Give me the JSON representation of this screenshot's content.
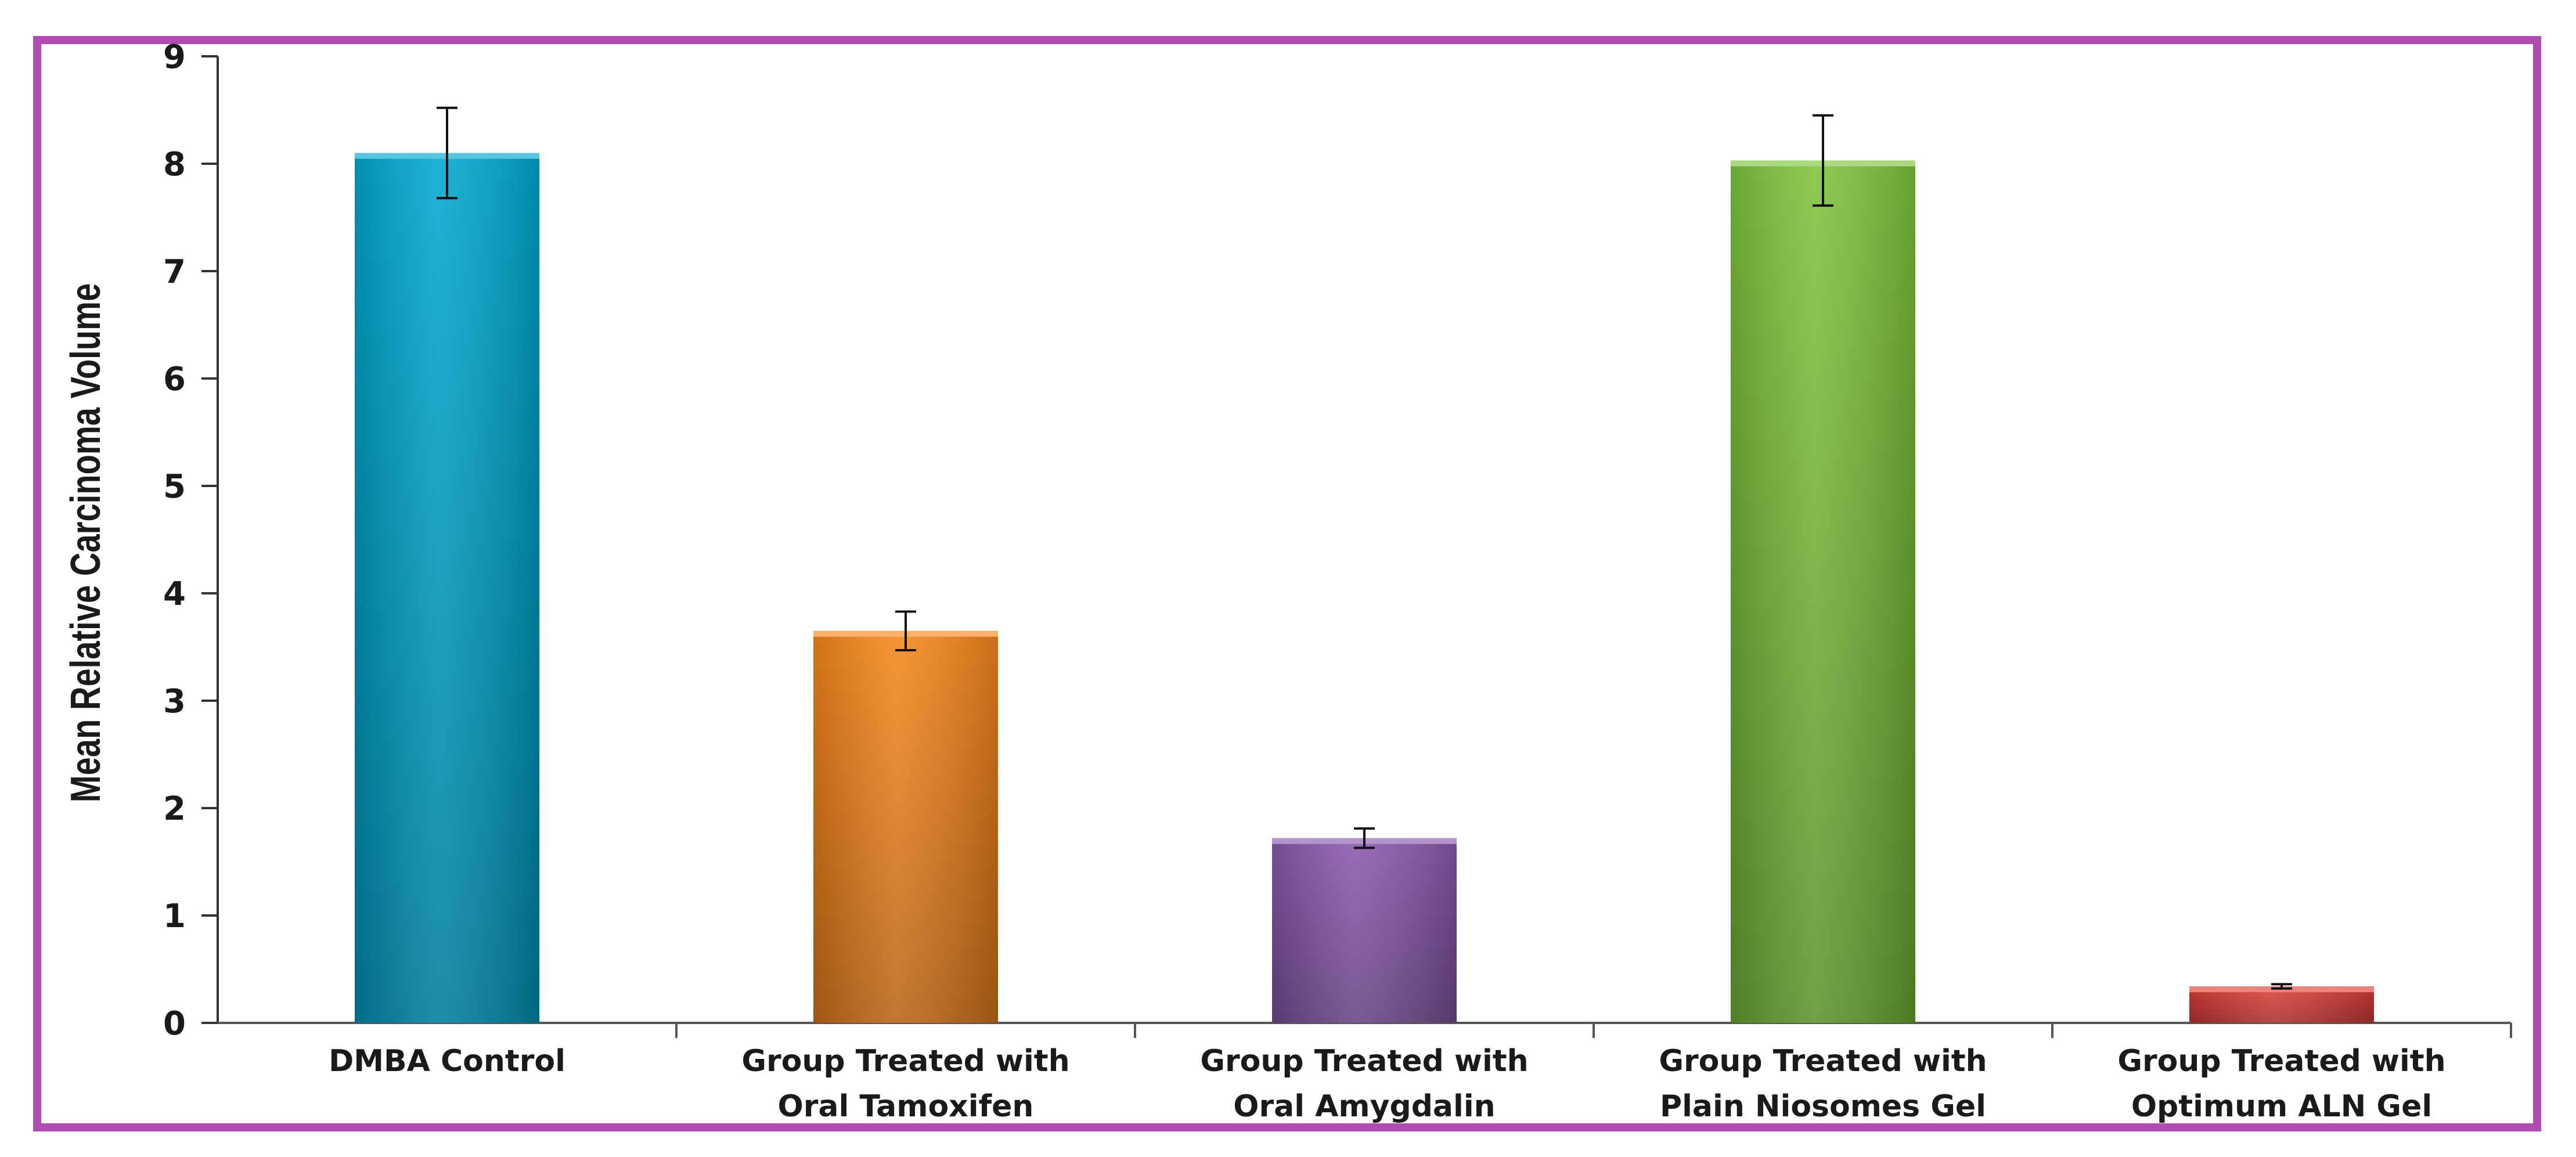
{
  "chart_data": {
    "type": "bar",
    "title": "",
    "xlabel": "",
    "ylabel": "Mean Relative Carcinoma Volume",
    "ylim": [
      0,
      9
    ],
    "yticks": [
      "0",
      "1",
      "2",
      "3",
      "4",
      "5",
      "6",
      "7",
      "8",
      "9"
    ],
    "grid": false,
    "legend": "none",
    "categories": [
      [
        "DMBA Control"
      ],
      [
        "Group Treated with",
        "Oral Tamoxifen"
      ],
      [
        "Group Treated with",
        "Oral Amygdalin"
      ],
      [
        "Group Treated with",
        "Plain Niosomes Gel"
      ],
      [
        "Group Treated with",
        "Optimum ALN Gel"
      ]
    ],
    "values": [
      8.1,
      3.65,
      1.72,
      8.03,
      0.34
    ],
    "errors": [
      0.42,
      0.18,
      0.09,
      0.42,
      0.02
    ],
    "colors": [
      "#00a8d0",
      "#f7871c",
      "#8a5aad",
      "#7ec43c",
      "#e0403a"
    ],
    "frame_color": "#b04bb0"
  }
}
